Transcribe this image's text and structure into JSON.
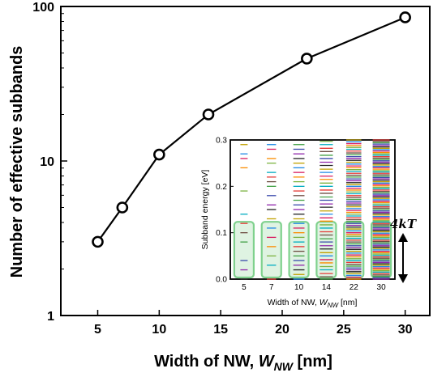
{
  "chart_data": [
    {
      "type": "line",
      "x": [
        5,
        7,
        10,
        14,
        22,
        30
      ],
      "series": [
        {
          "values": [
            3,
            5,
            11,
            20,
            46,
            85
          ],
          "color": "#000000",
          "marker": "open-circle"
        }
      ],
      "xlabel_main": "Width of NW, ",
      "xlabel_var": "W",
      "xlabel_sub": "NW",
      "xlabel_unit": " [nm]",
      "ylabel": "Number of effective subbands",
      "xlim": [
        2,
        32
      ],
      "ylim": [
        1,
        100
      ],
      "yscale": "log",
      "xticks": [
        "5",
        "10",
        "15",
        "20",
        "25",
        "30"
      ],
      "yticks": [
        "1",
        "10",
        "100"
      ],
      "grid": false
    },
    {
      "type": "scatter",
      "subtype": "energy-levels",
      "categories": [
        "5",
        "7",
        "10",
        "14",
        "22",
        "30"
      ],
      "ylabel": "Subband energy [eV]",
      "xlabel_main": "Width of NW, ",
      "xlabel_var": "W",
      "xlabel_sub": "NW",
      "xlabel_unit": " [nm]",
      "ylim": [
        0.0,
        0.3
      ],
      "yticks": [
        "0.0",
        "0.1",
        "0.2",
        "0.3"
      ],
      "highlight_max": 0.12,
      "highlight_color": "#7fd18d",
      "levels": [
        [
          0.0,
          0.02,
          0.04,
          0.08,
          0.1,
          0.12,
          0.14,
          0.19,
          0.24,
          0.26,
          0.27,
          0.29
        ],
        [
          0.0,
          0.03,
          0.05,
          0.07,
          0.09,
          0.11,
          0.13,
          0.15,
          0.16,
          0.18,
          0.2,
          0.21,
          0.22,
          0.23,
          0.25,
          0.26,
          0.28,
          0.29
        ],
        [
          0.0,
          0.01,
          0.02,
          0.03,
          0.04,
          0.05,
          0.06,
          0.07,
          0.08,
          0.09,
          0.1,
          0.11,
          0.12,
          0.13,
          0.14,
          0.15,
          0.16,
          0.17,
          0.18,
          0.19,
          0.2,
          0.21,
          0.22,
          0.23,
          0.24,
          0.25,
          0.26,
          0.27,
          0.28,
          0.29
        ],
        [
          0.0,
          0.005,
          0.012,
          0.02,
          0.027,
          0.035,
          0.042,
          0.05,
          0.057,
          0.065,
          0.072,
          0.08,
          0.087,
          0.095,
          0.102,
          0.11,
          0.117,
          0.125,
          0.132,
          0.14,
          0.147,
          0.155,
          0.162,
          0.17,
          0.177,
          0.185,
          0.192,
          0.2,
          0.207,
          0.215,
          0.222,
          0.23,
          0.237,
          0.245,
          0.252,
          0.26,
          0.267,
          0.275,
          0.282,
          0.29,
          0.297
        ],
        [
          0.0,
          0.004,
          0.008,
          0.012,
          0.016,
          0.02,
          0.024,
          0.028,
          0.032,
          0.036,
          0.04,
          0.044,
          0.048,
          0.052,
          0.056,
          0.06,
          0.064,
          0.068,
          0.072,
          0.076,
          0.08,
          0.084,
          0.088,
          0.092,
          0.096,
          0.1,
          0.104,
          0.108,
          0.112,
          0.116,
          0.12,
          0.124,
          0.128,
          0.132,
          0.136,
          0.14,
          0.144,
          0.148,
          0.152,
          0.156,
          0.16,
          0.164,
          0.168,
          0.172,
          0.176,
          0.18,
          0.184,
          0.188,
          0.192,
          0.196,
          0.2,
          0.204,
          0.208,
          0.212,
          0.216,
          0.22,
          0.224,
          0.228,
          0.232,
          0.236,
          0.24,
          0.244,
          0.248,
          0.252,
          0.256,
          0.26,
          0.264,
          0.268,
          0.272,
          0.276,
          0.28,
          0.284,
          0.288,
          0.292,
          0.296,
          0.3
        ],
        [
          0.0,
          0.003,
          0.006,
          0.009,
          0.012,
          0.015,
          0.018,
          0.021,
          0.024,
          0.027,
          0.03,
          0.033,
          0.036,
          0.039,
          0.042,
          0.045,
          0.048,
          0.051,
          0.054,
          0.057,
          0.06,
          0.063,
          0.066,
          0.069,
          0.072,
          0.075,
          0.078,
          0.081,
          0.084,
          0.087,
          0.09,
          0.093,
          0.096,
          0.099,
          0.102,
          0.105,
          0.108,
          0.111,
          0.114,
          0.117,
          0.12,
          0.123,
          0.126,
          0.129,
          0.132,
          0.135,
          0.138,
          0.141,
          0.144,
          0.147,
          0.15,
          0.153,
          0.156,
          0.159,
          0.162,
          0.165,
          0.168,
          0.171,
          0.174,
          0.177,
          0.18,
          0.183,
          0.186,
          0.189,
          0.192,
          0.195,
          0.198,
          0.201,
          0.204,
          0.207,
          0.21,
          0.213,
          0.216,
          0.219,
          0.222,
          0.225,
          0.228,
          0.231,
          0.234,
          0.237,
          0.24,
          0.243,
          0.246,
          0.249,
          0.252,
          0.255,
          0.258,
          0.261,
          0.264,
          0.267,
          0.27,
          0.273,
          0.276,
          0.279,
          0.282,
          0.285,
          0.288,
          0.291,
          0.294,
          0.297,
          0.3
        ]
      ],
      "level_colors": [
        "#222222",
        "#e53935",
        "#1e88e5",
        "#43a047",
        "#fb8c00",
        "#8e24aa",
        "#00acc1",
        "#c0a000",
        "#6d4c41",
        "#d81b60",
        "#3949ab",
        "#7cb342"
      ],
      "annotation": "4kT"
    }
  ]
}
